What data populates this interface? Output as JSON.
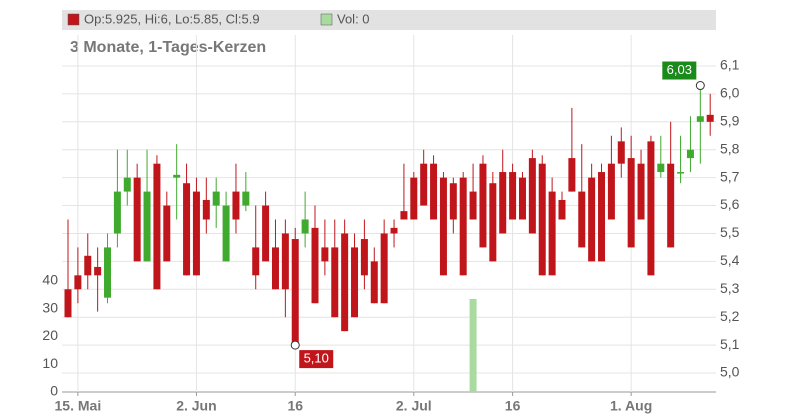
{
  "chart_data": {
    "type": "candlestick",
    "legend_ohlc": "Op:5.925, Hi:6, Lo:5.85, Cl:5.9",
    "legend_volume": "Vol: 0",
    "subtitle": "3 Monate, 1-Tages-Kerzen",
    "up_color": "#3faa2e",
    "down_color": "#c0161b",
    "volume_color": "#a9dba1",
    "categories": [
      null,
      "15. Mai",
      null,
      null,
      null,
      null,
      null,
      null,
      null,
      null,
      null,
      null,
      null,
      "2. Jun",
      null,
      null,
      null,
      null,
      null,
      null,
      null,
      null,
      null,
      "16",
      null,
      null,
      null,
      null,
      null,
      null,
      null,
      null,
      null,
      null,
      null,
      "2. Jul",
      null,
      null,
      null,
      null,
      null,
      null,
      null,
      null,
      null,
      "16",
      null,
      null,
      null,
      null,
      null,
      null,
      null,
      null,
      null,
      null,
      null,
      "1. Aug",
      null,
      null,
      null,
      null,
      null,
      null,
      null,
      null
    ],
    "open": [
      5.3,
      5.35,
      5.42,
      5.38,
      5.27,
      5.5,
      5.65,
      5.7,
      5.4,
      5.75,
      5.6,
      5.7,
      5.68,
      5.65,
      5.62,
      5.6,
      5.4,
      5.65,
      5.6,
      5.45,
      5.6,
      5.45,
      5.5,
      5.48,
      5.5,
      5.52,
      5.45,
      5.45,
      5.5,
      5.45,
      5.48,
      5.4,
      5.5,
      5.52,
      5.58,
      5.7,
      5.75,
      5.75,
      5.7,
      5.68,
      5.7,
      5.65,
      5.75,
      5.68,
      5.72,
      5.72,
      5.7,
      5.77,
      5.75,
      5.65,
      5.62,
      5.77,
      5.65,
      5.7,
      5.72,
      5.75,
      5.83,
      5.77,
      5.75,
      5.83,
      5.72,
      5.75,
      5.72,
      5.77,
      5.9,
      5.925
    ],
    "high": [
      5.55,
      5.45,
      5.5,
      5.45,
      5.5,
      5.8,
      5.8,
      5.75,
      5.8,
      5.78,
      5.65,
      5.82,
      5.75,
      5.7,
      5.7,
      5.7,
      5.65,
      5.75,
      5.72,
      5.6,
      5.65,
      5.55,
      5.55,
      5.52,
      5.65,
      5.6,
      5.55,
      5.55,
      5.55,
      5.5,
      5.55,
      5.45,
      5.55,
      5.55,
      5.75,
      5.72,
      5.8,
      5.78,
      5.72,
      5.7,
      5.72,
      5.75,
      5.78,
      5.72,
      5.8,
      5.75,
      5.72,
      5.8,
      5.78,
      5.7,
      5.65,
      5.95,
      5.82,
      5.75,
      5.75,
      5.85,
      5.88,
      5.85,
      5.8,
      5.85,
      5.85,
      5.9,
      5.85,
      5.92,
      6.03,
      6.0
    ],
    "low": [
      5.2,
      5.25,
      5.3,
      5.22,
      5.25,
      5.45,
      5.6,
      5.4,
      5.4,
      5.3,
      5.4,
      5.55,
      5.35,
      5.35,
      5.5,
      5.52,
      5.4,
      5.5,
      5.58,
      5.3,
      5.4,
      5.3,
      5.2,
      5.1,
      5.45,
      5.25,
      5.35,
      5.2,
      5.15,
      5.2,
      5.3,
      5.25,
      5.25,
      5.45,
      5.55,
      5.55,
      5.6,
      5.55,
      5.35,
      5.5,
      5.35,
      5.55,
      5.45,
      5.4,
      5.5,
      5.55,
      5.55,
      5.5,
      5.35,
      5.35,
      5.55,
      5.65,
      5.45,
      5.4,
      5.4,
      5.55,
      5.7,
      5.45,
      5.55,
      5.35,
      5.7,
      5.45,
      5.68,
      5.72,
      5.75,
      5.85
    ],
    "close": [
      5.2,
      5.3,
      5.35,
      5.35,
      5.45,
      5.65,
      5.7,
      5.4,
      5.65,
      5.3,
      5.4,
      5.71,
      5.35,
      5.35,
      5.55,
      5.65,
      5.6,
      5.55,
      5.65,
      5.35,
      5.4,
      5.3,
      5.3,
      5.1,
      5.55,
      5.25,
      5.4,
      5.2,
      5.15,
      5.2,
      5.35,
      5.25,
      5.25,
      5.5,
      5.55,
      5.55,
      5.6,
      5.55,
      5.35,
      5.55,
      5.35,
      5.55,
      5.45,
      5.4,
      5.5,
      5.55,
      5.55,
      5.5,
      5.35,
      5.35,
      5.55,
      5.65,
      5.45,
      5.4,
      5.4,
      5.55,
      5.75,
      5.45,
      5.55,
      5.35,
      5.75,
      5.45,
      5.72,
      5.8,
      5.92,
      5.9
    ],
    "volume": [
      0,
      0,
      0,
      0,
      0,
      0,
      0,
      0,
      0,
      0,
      0,
      0,
      0,
      0,
      0,
      0,
      0,
      0,
      0,
      0,
      0,
      0,
      0,
      0,
      0,
      0,
      0,
      0,
      0,
      0,
      0,
      0,
      0,
      0,
      0,
      0,
      0,
      0,
      0,
      0,
      0,
      33.5,
      0,
      0,
      0,
      0,
      0,
      0,
      0,
      0,
      0,
      0,
      0,
      0,
      0,
      0,
      0,
      0,
      0,
      0,
      0,
      0,
      0,
      0,
      0,
      0
    ],
    "max_label": {
      "value": 6.03,
      "label": "6,03"
    },
    "min_label": {
      "value": 5.1,
      "label": "5,10"
    },
    "ylim": [
      4.932,
      6.211
    ],
    "yticks": [
      {
        "value": 5.0,
        "label": "5,0"
      },
      {
        "value": 5.1,
        "label": "5,1"
      },
      {
        "value": 5.2,
        "label": "5,2"
      },
      {
        "value": 5.3,
        "label": "5,3"
      },
      {
        "value": 5.4,
        "label": "5,4"
      },
      {
        "value": 5.5,
        "label": "5,5"
      },
      {
        "value": 5.6,
        "label": "5,6"
      },
      {
        "value": 5.7,
        "label": "5,7"
      },
      {
        "value": 5.8,
        "label": "5,8"
      },
      {
        "value": 5.9,
        "label": "5,9"
      },
      {
        "value": 6.0,
        "label": "6,0"
      },
      {
        "value": 6.1,
        "label": "6,1"
      }
    ],
    "y2lim": [
      0,
      128.6
    ],
    "y2ticks": [
      0,
      10,
      20,
      30,
      40
    ],
    "grid": true
  }
}
